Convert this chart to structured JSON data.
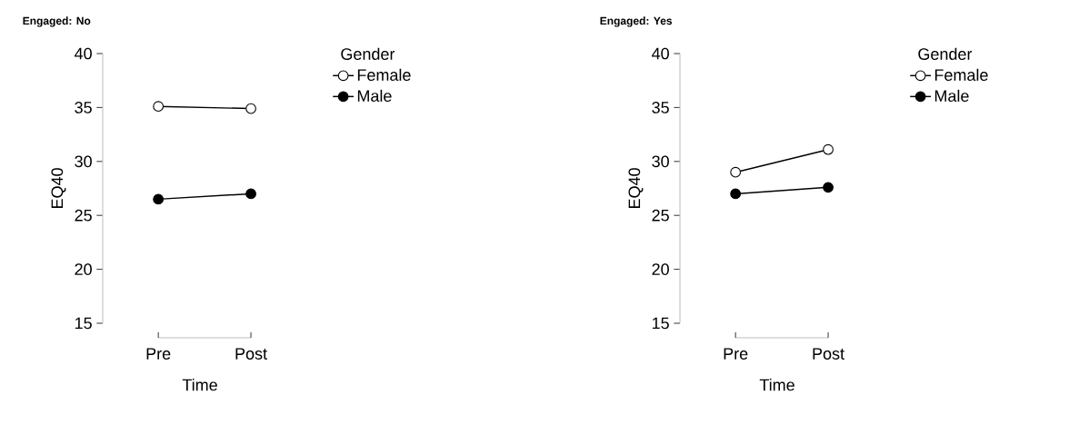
{
  "chart_data": [
    {
      "type": "line",
      "title": "Engaged: No",
      "categories": [
        "Pre",
        "Post"
      ],
      "xlabel": "Time",
      "ylabel": "EQ40",
      "ylim": [
        15,
        40
      ],
      "yticks": [
        15,
        20,
        25,
        30,
        35,
        40
      ],
      "legend": "right",
      "legend_title": "Gender",
      "marker": "circle",
      "line_style": "solid",
      "series": [
        {
          "name": "Female",
          "color": "#ffffff",
          "values": [
            35.1,
            34.9
          ]
        },
        {
          "name": "Male",
          "color": "#000000",
          "values": [
            26.5,
            27.0
          ]
        }
      ]
    },
    {
      "type": "line",
      "title": "Engaged: Yes",
      "categories": [
        "Pre",
        "Post"
      ],
      "xlabel": "Time",
      "ylabel": "EQ40",
      "ylim": [
        15,
        40
      ],
      "yticks": [
        15,
        20,
        25,
        30,
        35,
        40
      ],
      "legend": "right",
      "legend_title": "Gender",
      "marker": "circle",
      "line_style": "solid",
      "series": [
        {
          "name": "Female",
          "color": "#ffffff",
          "values": [
            29.0,
            31.1
          ]
        },
        {
          "name": "Male",
          "color": "#000000",
          "values": [
            27.0,
            27.6
          ]
        }
      ]
    }
  ]
}
